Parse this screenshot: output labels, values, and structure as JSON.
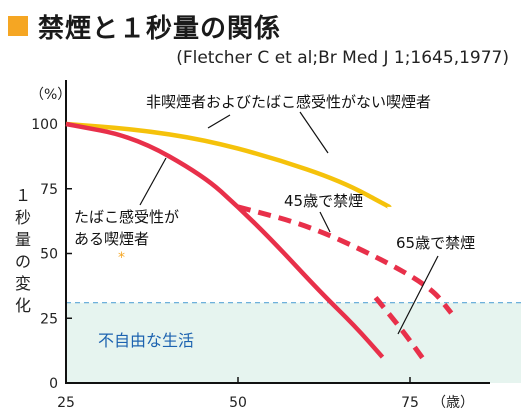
{
  "title": "禁煙と１秒量の関係",
  "citation": "(Fletcher C et al;Br Med J 1;1645,1977)",
  "chart_data": {
    "type": "line",
    "x_ticks": [
      "25",
      "50",
      "75"
    ],
    "x_unit": "（歳）",
    "y_ticks": [
      "0",
      "25",
      "50",
      "75",
      "100"
    ],
    "y_unit": "（%）",
    "ylabel": "１秒量の変化",
    "xlim": [
      25,
      84
    ],
    "ylim": [
      0,
      127
    ],
    "shaded_region": {
      "label": "不自由な生活",
      "y_max": 31
    },
    "series": [
      {
        "name": "非喫煙者およびたばこ感受性がない喫煙者",
        "color": "#f5c20b",
        "style": "solid",
        "x": [
          25,
          35,
          45,
          55,
          65,
          72
        ],
        "y": [
          100,
          98,
          94,
          87,
          78,
          68
        ]
      },
      {
        "name": "たばこ感受性がある喫煙者",
        "color": "#e8304a",
        "style": "solid",
        "x": [
          25,
          35,
          45,
          50,
          55,
          62,
          67,
          71
        ],
        "y": [
          100,
          95,
          80,
          68,
          55,
          35,
          22,
          10
        ]
      },
      {
        "name": "45歳で禁煙",
        "color": "#e8304a",
        "style": "dashed",
        "x": [
          50,
          60,
          70,
          78,
          81
        ],
        "y": [
          68,
          61,
          49,
          37,
          27
        ]
      },
      {
        "name": "65歳で禁煙",
        "color": "#e8304a",
        "style": "dashed",
        "x": [
          70,
          74,
          77
        ],
        "y": [
          33,
          20,
          9
        ]
      }
    ],
    "annotations": [
      {
        "text": "非喫煙者およびたばこ感受性がない喫煙者"
      },
      {
        "text": "45歳で禁煙"
      },
      {
        "text": "65歳で禁煙"
      },
      {
        "text_line1": "たばこ感受性が",
        "text_line2": "ある喫煙者"
      }
    ]
  }
}
